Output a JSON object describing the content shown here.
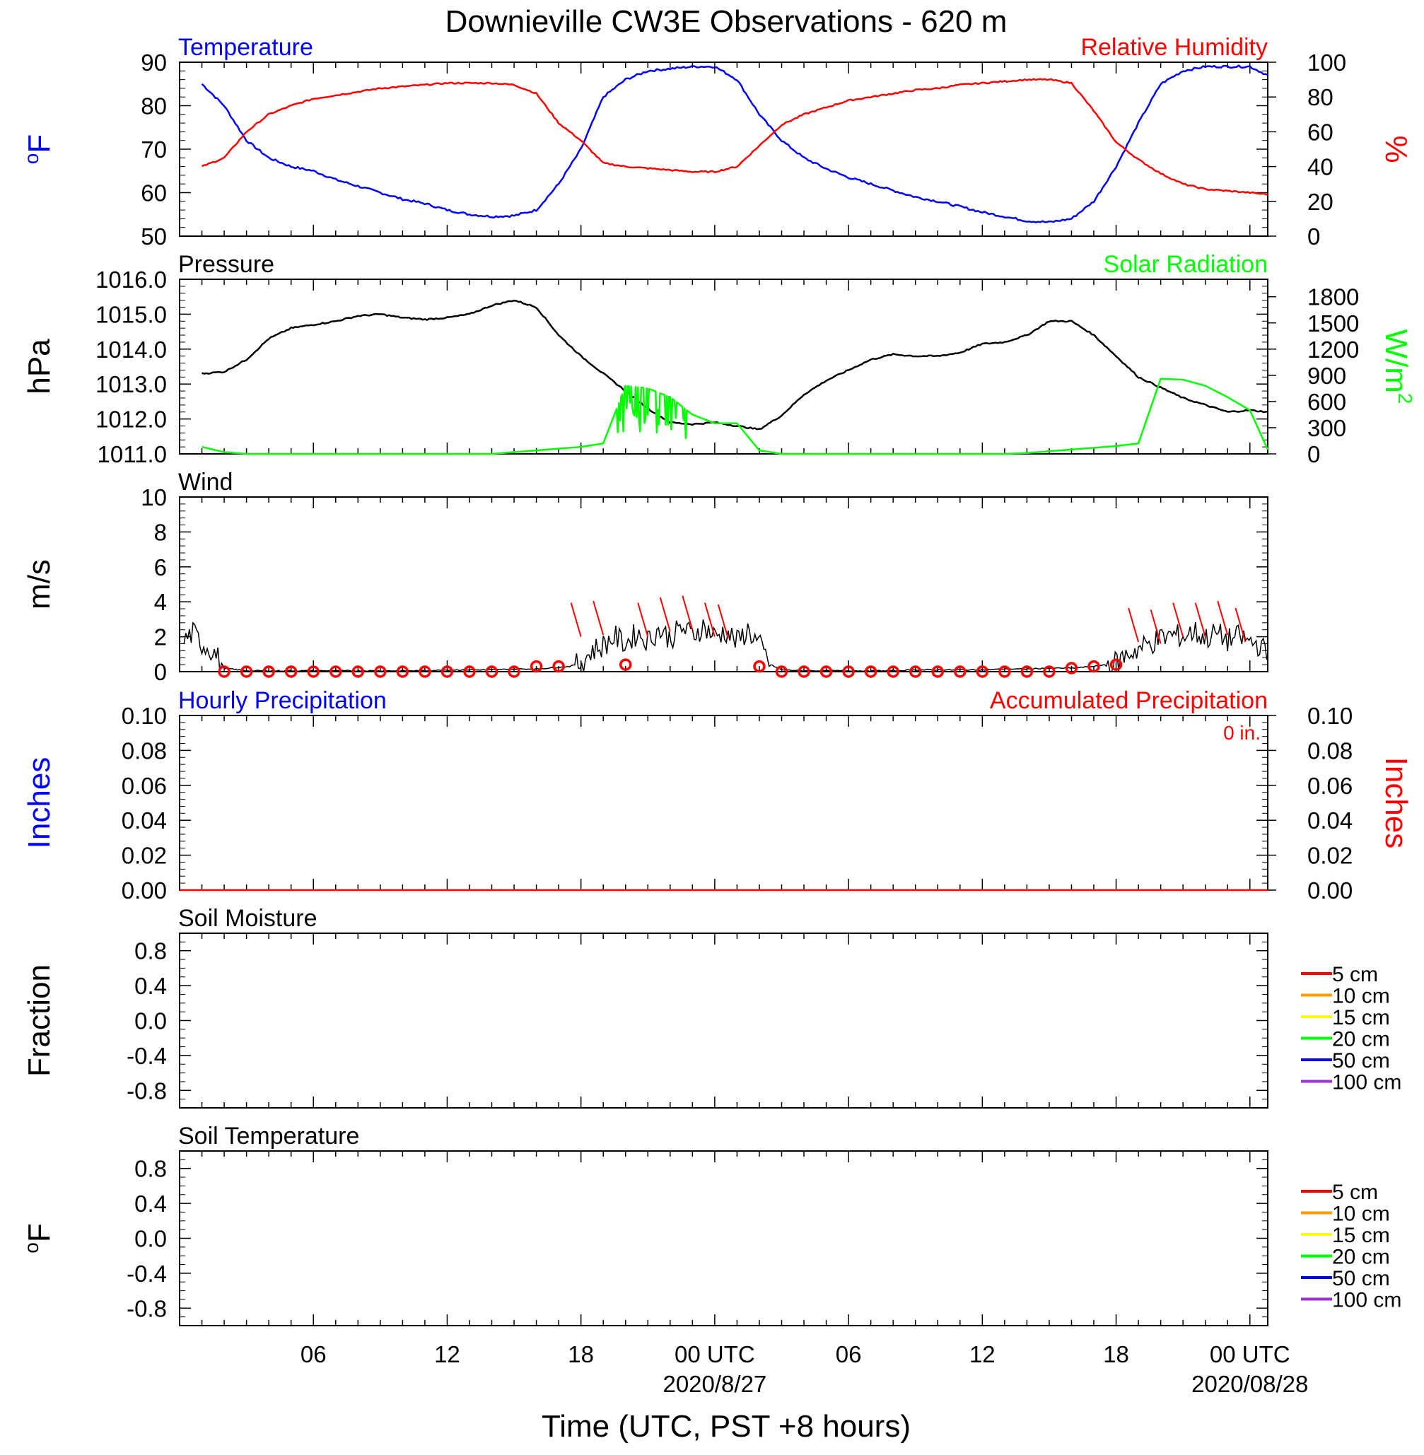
{
  "title": "Downieville CW3E Observations - 620 m",
  "xlabel": "Time (UTC, PST +8 hours)",
  "x_ticks": [
    {
      "hour": 6,
      "label": "06",
      "date": ""
    },
    {
      "hour": 12,
      "label": "12",
      "date": ""
    },
    {
      "hour": 18,
      "label": "18",
      "date": ""
    },
    {
      "hour": 24,
      "label": "00 UTC",
      "date": "2020/8/27"
    },
    {
      "hour": 30,
      "label": "06",
      "date": ""
    },
    {
      "hour": 36,
      "label": "12",
      "date": ""
    },
    {
      "hour": 42,
      "label": "18",
      "date": ""
    },
    {
      "hour": 48,
      "label": "00 UTC",
      "date": "2020/08/28"
    }
  ],
  "colors": {
    "temperature": "#0000ff",
    "humidity": "#ff0000",
    "pressure": "#000000",
    "solar": "#00ff00",
    "wind": "#000000",
    "wind_marker": "#ff0000",
    "hourly_precip_label": "#0000ff",
    "accum_precip": "#ff0000"
  },
  "chart_data": [
    {
      "type": "line",
      "id": "temp-rh",
      "left_title": "Temperature",
      "right_title": "Relative Humidity",
      "left_ylabel": "oF",
      "right_ylabel": "%",
      "left_ticks": [
        "90",
        "80",
        "70",
        "60",
        "50"
      ],
      "right_ticks": [
        "100",
        "80",
        "60",
        "40",
        "20",
        "0"
      ],
      "left_ylim": [
        50,
        90
      ],
      "right_ylim": [
        0,
        100
      ],
      "x": [
        1,
        2,
        3,
        4,
        5,
        6,
        7,
        8,
        9,
        10,
        11,
        12,
        13,
        14,
        15,
        16,
        17,
        18,
        19,
        20,
        21,
        22,
        23,
        24,
        25,
        26,
        27,
        28,
        29,
        30,
        31,
        32,
        33,
        34,
        35,
        36,
        37,
        38,
        39,
        40,
        41,
        42,
        43,
        44,
        45,
        46,
        47,
        48,
        48.8
      ],
      "series": [
        {
          "name": "Temperature",
          "axis": "left",
          "values": [
            85,
            80,
            72,
            68,
            66,
            65,
            63,
            61.5,
            60,
            58.5,
            57.5,
            56,
            55,
            54.5,
            54.7,
            56,
            62,
            70,
            82,
            86,
            88,
            88.5,
            89,
            89,
            86,
            78,
            72,
            68,
            65.5,
            63.5,
            62,
            60.5,
            59,
            58,
            56.8,
            55.5,
            54.5,
            53.5,
            53.2,
            54,
            58,
            66,
            76,
            85,
            88,
            89,
            89,
            89,
            87
          ]
        },
        {
          "name": "Relative Humidity",
          "axis": "right",
          "values": [
            40,
            45,
            60,
            70,
            75,
            79,
            81,
            83,
            85,
            86,
            87,
            88,
            88,
            88,
            87,
            82,
            65,
            55,
            42,
            40,
            39,
            38,
            37,
            37,
            40,
            52,
            64,
            70,
            74,
            78,
            80,
            82,
            84,
            85,
            87,
            88,
            89,
            90,
            90,
            88,
            72,
            54,
            44,
            36,
            30,
            27,
            26,
            25,
            24
          ]
        }
      ]
    },
    {
      "type": "line",
      "id": "pressure-solar",
      "left_title": "Pressure",
      "right_title": "Solar Radiation",
      "left_ylabel": "hPa",
      "right_ylabel": "W/m2",
      "left_ticks": [
        "1016.0",
        "1015.0",
        "1014.0",
        "1013.0",
        "1012.0",
        "1011.0"
      ],
      "right_ticks": [
        "1800",
        "1500",
        "1200",
        "900",
        "600",
        "300",
        "0"
      ],
      "left_ylim": [
        1011,
        1016
      ],
      "right_ylim": [
        0,
        2000
      ],
      "x": [
        1,
        2,
        3,
        4,
        5,
        6,
        7,
        8,
        9,
        10,
        11,
        12,
        13,
        14,
        15,
        16,
        17,
        18,
        19,
        20,
        21,
        22,
        23,
        24,
        25,
        26,
        27,
        28,
        29,
        30,
        31,
        32,
        33,
        34,
        35,
        36,
        37,
        38,
        39,
        40,
        41,
        42,
        43,
        44,
        45,
        46,
        47,
        48,
        48.8
      ],
      "series": [
        {
          "name": "Pressure",
          "axis": "left",
          "values": [
            1013.3,
            1013.35,
            1013.7,
            1014.3,
            1014.6,
            1014.7,
            1014.8,
            1014.95,
            1015.0,
            1014.9,
            1014.85,
            1014.9,
            1015.0,
            1015.25,
            1015.4,
            1015.2,
            1014.4,
            1013.8,
            1013.3,
            1012.8,
            1012.3,
            1011.9,
            1011.85,
            1011.9,
            1011.8,
            1011.7,
            1012.1,
            1012.7,
            1013.1,
            1013.4,
            1013.7,
            1013.85,
            1013.8,
            1013.8,
            1013.9,
            1014.15,
            1014.2,
            1014.4,
            1014.8,
            1014.8,
            1014.4,
            1013.8,
            1013.2,
            1012.9,
            1012.6,
            1012.4,
            1012.2,
            1012.25,
            1012.2
          ]
        },
        {
          "name": "Solar Radiation",
          "axis": "right",
          "values": [
            80,
            20,
            0,
            0,
            0,
            0,
            0,
            0,
            0,
            0,
            0,
            0,
            0,
            0,
            20,
            40,
            60,
            80,
            120,
            780,
            750,
            650,
            450,
            350,
            350,
            40,
            0,
            0,
            0,
            0,
            0,
            0,
            0,
            0,
            0,
            0,
            0,
            10,
            30,
            50,
            70,
            90,
            120,
            860,
            850,
            780,
            650,
            500,
            50
          ]
        }
      ]
    },
    {
      "type": "line",
      "id": "wind",
      "left_title": "Wind",
      "left_ylabel": "m/s",
      "left_ticks": [
        "10",
        "8",
        "6",
        "4",
        "2",
        "0"
      ],
      "left_ylim": [
        0,
        10
      ],
      "x": [
        0.2,
        0.6,
        1.0,
        1.5,
        2.0,
        3,
        4,
        5,
        6,
        7,
        8,
        9,
        10,
        11,
        12,
        13,
        14,
        15,
        16,
        17,
        17.5,
        18,
        18.5,
        19,
        19.5,
        20,
        20.5,
        21,
        21.5,
        22,
        22.5,
        23,
        23.5,
        24,
        24.5,
        25,
        25.5,
        26,
        26.5,
        27,
        28,
        29,
        30,
        31,
        32,
        33,
        34,
        35,
        36,
        37,
        38,
        39,
        40,
        41,
        41.5,
        42,
        42.5,
        43,
        43.5,
        44,
        44.5,
        45,
        45.5,
        46,
        46.5,
        47,
        47.5,
        48,
        48.5,
        48.8
      ],
      "series": [
        {
          "name": "Wind",
          "values": [
            1.8,
            2.2,
            1.6,
            1.2,
            0.2,
            0.05,
            0.05,
            0.05,
            0.05,
            0.05,
            0.05,
            0.05,
            0.05,
            0.05,
            0.1,
            0.1,
            0.1,
            0.15,
            0.15,
            0.25,
            0.3,
            0.5,
            1.2,
            1.5,
            2.0,
            1.6,
            2.2,
            1.8,
            2.4,
            1.9,
            2.5,
            2.1,
            2.6,
            2.0,
            2.3,
            1.7,
            2.4,
            1.5,
            0.4,
            0.1,
            0.05,
            0.05,
            0.05,
            0.05,
            0.05,
            0.1,
            0.1,
            0.1,
            0.1,
            0.15,
            0.15,
            0.2,
            0.2,
            0.3,
            0.4,
            0.5,
            1.0,
            1.3,
            1.6,
            1.9,
            2.1,
            2.0,
            2.3,
            1.9,
            2.2,
            1.8,
            2.0,
            1.7,
            1.5,
            0.8
          ]
        }
      ],
      "markers": {
        "x": [
          2,
          3,
          4,
          5,
          6,
          7,
          8,
          9,
          10,
          11,
          12,
          13,
          14,
          15,
          16,
          17,
          20,
          26,
          27,
          28,
          29,
          30,
          31,
          32,
          33,
          34,
          35,
          36,
          37,
          38,
          39,
          40,
          41,
          42
        ],
        "values": [
          0,
          0,
          0,
          0,
          0,
          0,
          0,
          0,
          0,
          0,
          0,
          0,
          0,
          0,
          0.3,
          0.3,
          0.4,
          0.3,
          0,
          0,
          0,
          0,
          0,
          0,
          0,
          0,
          0,
          0,
          0,
          0,
          0,
          0.2,
          0.3,
          0.4
        ]
      },
      "barbs": {
        "x": [
          18,
          19,
          21,
          22,
          23,
          24,
          24.6,
          43,
          44,
          45,
          46,
          47,
          47.8
        ],
        "values": [
          2.0,
          2.1,
          2.0,
          2.3,
          2.4,
          2.0,
          1.9,
          1.7,
          1.6,
          2.0,
          2.0,
          2.1,
          1.7
        ]
      }
    },
    {
      "type": "line",
      "id": "precip",
      "left_title": "Hourly Precipitation",
      "right_title": "Accumulated Precipitation",
      "annotation": "0 in.",
      "left_ylabel": "Inches",
      "right_ylabel": "Inches",
      "left_ticks": [
        "0.10",
        "0.08",
        "0.06",
        "0.04",
        "0.02",
        "0.00"
      ],
      "right_ticks": [
        "0.10",
        "0.08",
        "0.06",
        "0.04",
        "0.02",
        "0.00"
      ],
      "left_ylim": [
        0,
        0.1
      ],
      "x": [
        0,
        48.8
      ],
      "series": [
        {
          "name": "Accumulated Precipitation",
          "values": [
            0,
            0
          ]
        }
      ]
    },
    {
      "type": "line",
      "id": "soil-moisture",
      "left_title": "Soil Moisture",
      "left_ylabel": "Fraction",
      "left_ticks": [
        "0.8",
        "0.4",
        "0.0",
        "-0.4",
        "-0.8"
      ],
      "left_ylim": [
        -1,
        1
      ],
      "legend": [
        {
          "label": "5 cm",
          "color": "#ff0000"
        },
        {
          "label": "10 cm",
          "color": "#ff9900"
        },
        {
          "label": "15 cm",
          "color": "#ffff00"
        },
        {
          "label": "20 cm",
          "color": "#00ff00"
        },
        {
          "label": "50 cm",
          "color": "#0000ff"
        },
        {
          "label": "100 cm",
          "color": "#9933cc"
        }
      ]
    },
    {
      "type": "line",
      "id": "soil-temperature",
      "left_title": "Soil Temperature",
      "left_ylabel": "oF",
      "left_ticks": [
        "0.8",
        "0.4",
        "0.0",
        "-0.4",
        "-0.8"
      ],
      "left_ylim": [
        -1,
        1
      ],
      "legend": [
        {
          "label": "5 cm",
          "color": "#ff0000"
        },
        {
          "label": "10 cm",
          "color": "#ff9900"
        },
        {
          "label": "15 cm",
          "color": "#ffff00"
        },
        {
          "label": "20 cm",
          "color": "#00ff00"
        },
        {
          "label": "50 cm",
          "color": "#0000ff"
        },
        {
          "label": "100 cm",
          "color": "#9933cc"
        }
      ]
    }
  ]
}
